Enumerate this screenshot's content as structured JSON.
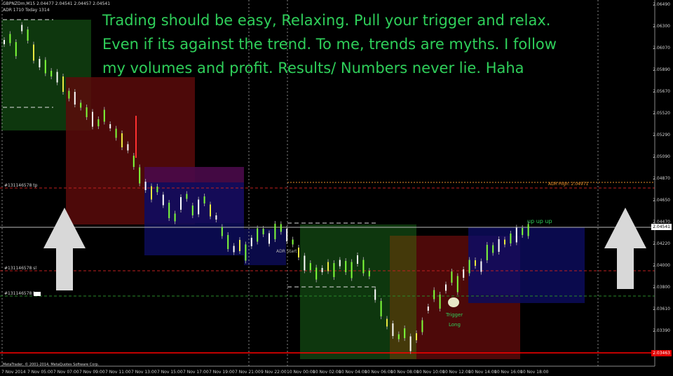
{
  "header": {
    "symbol_line": "GBPNZDm,M15  2.04477 2.04541 2.04457 2.04541",
    "adr_line": "ADR 1710  Today 1314"
  },
  "overlay_text": {
    "line1": "Trading should be easy, Relaxing. Pull your trigger and relax.",
    "line2": "Even if its against the trend. To me, trends are myths. I follow",
    "line3": "my volumes and profit. Results/ Numbers never lie. Haha"
  },
  "order_labels": {
    "tp": "#131146578 tp",
    "sl": "#131146578 sl",
    "buy": "#131146578 buy"
  },
  "annotations": {
    "adr_high": "ADR High: 2.04971",
    "adr_start": "ADR Start",
    "up": "up up up",
    "trigger": "Trigger",
    "long": "Long"
  },
  "footer": "MetaTrader, © 2001-2014, MetaQuotes Software Corp.",
  "current_price": "2.04541",
  "bottom_price": "2.03463",
  "price_axis": [
    "2.06490",
    "2.06300",
    "2.06070",
    "2.05890",
    "2.05670",
    "2.05520",
    "2.05290",
    "2.05090",
    "2.04870",
    "2.04650",
    "2.04470",
    "2.04220",
    "2.04000",
    "2.03800",
    "2.03610",
    "2.03390",
    "2.03161"
  ],
  "time_axis": [
    "7 Nov 2014",
    "7 Nov 05:00",
    "7 Nov 07:00",
    "7 Nov 09:00",
    "7 Nov 11:00",
    "7 Nov 13:00",
    "7 Nov 15:00",
    "7 Nov 17:00",
    "7 Nov 19:00",
    "7 Nov 21:00",
    "9 Nov 22:00",
    "10 Nov 00:00",
    "10 Nov 02:00",
    "10 Nov 04:00",
    "10 Nov 06:00",
    "10 Nov 08:00",
    "10 Nov 10:00",
    "10 Nov 12:00",
    "10 Nov 14:00",
    "10 Nov 16:00",
    "10 Nov 18:00"
  ],
  "colors": {
    "background": "#000000",
    "text_green": "#2fcf5a",
    "adr_orange": "#e8902a",
    "sl_red": "#ff0000",
    "bull": "#7fff3a",
    "bear": "#ffffff",
    "arrow": "#d8d8d8"
  }
}
